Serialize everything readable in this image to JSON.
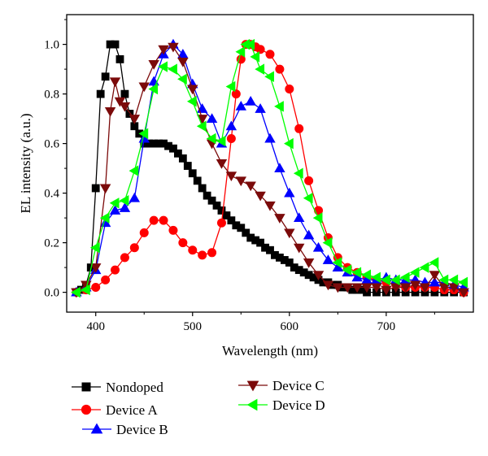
{
  "chart_data": {
    "type": "line",
    "xlabel": "Wavelength (nm)",
    "ylabel": "EL intensity (a.u.)",
    "xlim": [
      370,
      790
    ],
    "ylim": [
      -0.08,
      1.12
    ],
    "xticks": [
      400,
      500,
      600,
      700
    ],
    "yticks": [
      0.0,
      0.2,
      0.4,
      0.6,
      0.8,
      1.0
    ],
    "ytick_labels": [
      "0.0",
      "0.2",
      "0.4",
      "0.6",
      "0.8",
      "1.0"
    ],
    "legend_position": "bottom",
    "series": [
      {
        "name": "Nondoped",
        "color": "#000000",
        "marker": "square",
        "x": [
          380,
          385,
          390,
          395,
          400,
          405,
          410,
          415,
          420,
          425,
          430,
          435,
          440,
          445,
          450,
          455,
          460,
          465,
          470,
          475,
          480,
          485,
          490,
          495,
          500,
          505,
          510,
          515,
          520,
          525,
          530,
          535,
          540,
          545,
          550,
          555,
          560,
          565,
          570,
          575,
          580,
          585,
          590,
          595,
          600,
          605,
          610,
          615,
          620,
          625,
          630,
          635,
          640,
          645,
          650,
          655,
          660,
          665,
          670,
          675,
          680,
          690,
          700,
          710,
          720,
          730,
          740,
          750,
          760,
          770,
          780
        ],
        "y": [
          0.0,
          0.01,
          0.03,
          0.1,
          0.42,
          0.8,
          0.87,
          1.0,
          1.0,
          0.94,
          0.8,
          0.72,
          0.67,
          0.64,
          0.6,
          0.6,
          0.6,
          0.6,
          0.6,
          0.59,
          0.58,
          0.56,
          0.54,
          0.51,
          0.48,
          0.45,
          0.42,
          0.39,
          0.37,
          0.35,
          0.33,
          0.31,
          0.29,
          0.27,
          0.26,
          0.24,
          0.22,
          0.21,
          0.2,
          0.18,
          0.17,
          0.15,
          0.14,
          0.13,
          0.12,
          0.1,
          0.09,
          0.08,
          0.07,
          0.06,
          0.05,
          0.04,
          0.04,
          0.03,
          0.03,
          0.02,
          0.02,
          0.01,
          0.01,
          0.01,
          0.0,
          0.0,
          0.0,
          0.0,
          0.0,
          0.0,
          0.0,
          0.0,
          0.0,
          0.0,
          0.0
        ]
      },
      {
        "name": "Device A",
        "color": "#ff0000",
        "marker": "circle",
        "x": [
          380,
          390,
          400,
          410,
          420,
          430,
          440,
          450,
          460,
          470,
          480,
          490,
          500,
          510,
          520,
          530,
          540,
          545,
          550,
          555,
          560,
          565,
          570,
          580,
          590,
          600,
          610,
          620,
          630,
          640,
          650,
          660,
          670,
          680,
          690,
          700,
          710,
          720,
          730,
          740,
          750,
          760,
          770,
          780
        ],
        "y": [
          0.0,
          0.01,
          0.02,
          0.05,
          0.09,
          0.14,
          0.18,
          0.24,
          0.29,
          0.29,
          0.25,
          0.2,
          0.17,
          0.15,
          0.16,
          0.28,
          0.62,
          0.8,
          0.94,
          1.0,
          1.0,
          0.99,
          0.98,
          0.96,
          0.9,
          0.82,
          0.66,
          0.45,
          0.33,
          0.22,
          0.14,
          0.1,
          0.08,
          0.06,
          0.05,
          0.04,
          0.03,
          0.02,
          0.02,
          0.02,
          0.02,
          0.01,
          0.01,
          0.0
        ]
      },
      {
        "name": "Device B",
        "color": "#0000ff",
        "marker": "triangle-up",
        "x": [
          380,
          390,
          400,
          410,
          420,
          430,
          440,
          450,
          460,
          470,
          480,
          490,
          500,
          510,
          520,
          530,
          540,
          550,
          560,
          570,
          580,
          590,
          600,
          610,
          620,
          630,
          640,
          650,
          660,
          670,
          680,
          690,
          700,
          710,
          720,
          730,
          740,
          750,
          760,
          770,
          780
        ],
        "y": [
          0.0,
          0.02,
          0.09,
          0.28,
          0.33,
          0.34,
          0.38,
          0.62,
          0.85,
          0.96,
          1.0,
          0.96,
          0.84,
          0.74,
          0.7,
          0.6,
          0.67,
          0.75,
          0.77,
          0.74,
          0.62,
          0.5,
          0.4,
          0.3,
          0.23,
          0.18,
          0.13,
          0.1,
          0.08,
          0.06,
          0.05,
          0.05,
          0.06,
          0.05,
          0.05,
          0.05,
          0.04,
          0.04,
          0.04,
          0.03,
          0.02
        ]
      },
      {
        "name": "Device C",
        "color": "#7b0a0a",
        "marker": "triangle-down",
        "x": [
          380,
          390,
          400,
          410,
          415,
          420,
          425,
          430,
          440,
          450,
          460,
          470,
          480,
          490,
          500,
          510,
          520,
          530,
          540,
          550,
          560,
          570,
          580,
          590,
          600,
          610,
          620,
          630,
          640,
          650,
          660,
          670,
          680,
          690,
          700,
          710,
          720,
          730,
          740,
          750,
          760,
          770,
          780
        ],
        "y": [
          0.0,
          0.03,
          0.1,
          0.42,
          0.73,
          0.85,
          0.77,
          0.75,
          0.7,
          0.83,
          0.92,
          0.98,
          0.99,
          0.93,
          0.82,
          0.7,
          0.6,
          0.52,
          0.47,
          0.45,
          0.43,
          0.39,
          0.35,
          0.3,
          0.24,
          0.18,
          0.12,
          0.07,
          0.03,
          0.02,
          0.02,
          0.02,
          0.02,
          0.02,
          0.01,
          0.02,
          0.02,
          0.03,
          0.02,
          0.07,
          0.02,
          0.02,
          0.0
        ]
      },
      {
        "name": "Device D",
        "color": "#00ff00",
        "marker": "triangle-left",
        "x": [
          380,
          390,
          400,
          410,
          420,
          430,
          440,
          450,
          460,
          470,
          480,
          490,
          500,
          510,
          520,
          530,
          540,
          550,
          555,
          560,
          565,
          570,
          580,
          590,
          600,
          610,
          620,
          630,
          640,
          650,
          660,
          670,
          680,
          690,
          700,
          710,
          720,
          730,
          740,
          750,
          760,
          770,
          780
        ],
        "y": [
          0.0,
          0.01,
          0.18,
          0.3,
          0.36,
          0.37,
          0.49,
          0.64,
          0.82,
          0.91,
          0.9,
          0.86,
          0.77,
          0.67,
          0.62,
          0.61,
          0.83,
          0.97,
          1.0,
          1.0,
          0.95,
          0.9,
          0.87,
          0.75,
          0.6,
          0.48,
          0.38,
          0.3,
          0.2,
          0.12,
          0.09,
          0.08,
          0.07,
          0.06,
          0.05,
          0.05,
          0.06,
          0.08,
          0.1,
          0.12,
          0.05,
          0.05,
          0.04
        ]
      }
    ]
  }
}
